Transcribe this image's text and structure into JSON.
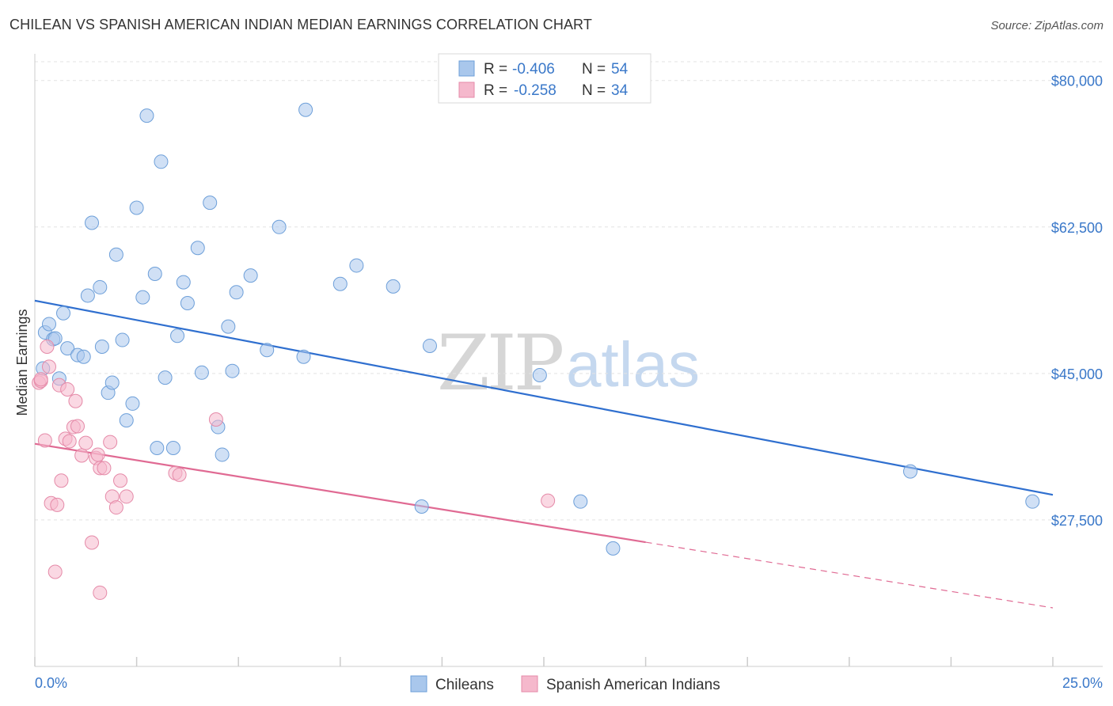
{
  "title": "CHILEAN VS SPANISH AMERICAN INDIAN MEDIAN EARNINGS CORRELATION CHART",
  "source": "Source: ZipAtlas.com",
  "watermark": {
    "zip": "ZIP",
    "atlas": "atlas"
  },
  "legend": {
    "rows": [
      {
        "r_label": "R =",
        "r_value": "-0.406",
        "n_label": "N =",
        "n_value": "54"
      },
      {
        "r_label": "R =",
        "r_value": "-0.258",
        "n_label": "N =",
        "n_value": "34"
      }
    ]
  },
  "colors": {
    "blue_fill": "#a9c7ec",
    "blue_stroke": "#6d9fd9",
    "blue_line": "#2f6fcf",
    "pink_fill": "#f5b8cc",
    "pink_stroke": "#e58aa8",
    "pink_line": "#e06a93",
    "axis_text": "#3a78c9",
    "grid": "#e3e3e3"
  },
  "chart_data": {
    "type": "scatter",
    "title": "CHILEAN VS SPANISH AMERICAN INDIAN MEDIAN EARNINGS CORRELATION CHART",
    "xlabel": "",
    "ylabel": "Median Earnings",
    "xlim": [
      0,
      25
    ],
    "ylim": [
      10000,
      83000
    ],
    "x_tick_labels": [
      "0.0%",
      "25.0%"
    ],
    "y_ticks": [
      27500,
      45000,
      62500,
      80000
    ],
    "y_tick_labels": [
      "$27,500",
      "$45,000",
      "$62,500",
      "$80,000"
    ],
    "grid": true,
    "series": [
      {
        "name": "Chileans",
        "color": "#a9c7ec",
        "trend": {
          "x": [
            0,
            25
          ],
          "y": [
            53700,
            30500
          ],
          "dashed_from": null
        },
        "points": [
          [
            0.2,
            45600
          ],
          [
            0.25,
            49900
          ],
          [
            0.35,
            50900
          ],
          [
            0.45,
            49100
          ],
          [
            0.5,
            49200
          ],
          [
            0.6,
            44400
          ],
          [
            0.7,
            52200
          ],
          [
            0.8,
            48000
          ],
          [
            1.05,
            47200
          ],
          [
            1.2,
            47000
          ],
          [
            1.3,
            54300
          ],
          [
            1.4,
            63000
          ],
          [
            1.6,
            55300
          ],
          [
            1.65,
            48200
          ],
          [
            1.8,
            42700
          ],
          [
            1.9,
            43900
          ],
          [
            2.0,
            59200
          ],
          [
            2.15,
            49000
          ],
          [
            2.25,
            39400
          ],
          [
            2.4,
            41400
          ],
          [
            2.5,
            64800
          ],
          [
            2.65,
            54100
          ],
          [
            2.75,
            75800
          ],
          [
            2.95,
            56900
          ],
          [
            3.0,
            36100
          ],
          [
            3.1,
            70300
          ],
          [
            3.2,
            44500
          ],
          [
            3.4,
            36100
          ],
          [
            3.5,
            49500
          ],
          [
            3.65,
            55900
          ],
          [
            3.75,
            53400
          ],
          [
            4.0,
            60000
          ],
          [
            4.1,
            45100
          ],
          [
            4.3,
            65400
          ],
          [
            4.5,
            38600
          ],
          [
            4.6,
            35300
          ],
          [
            4.75,
            50600
          ],
          [
            4.85,
            45300
          ],
          [
            4.95,
            54700
          ],
          [
            5.3,
            56700
          ],
          [
            5.7,
            47800
          ],
          [
            6.0,
            62500
          ],
          [
            6.6,
            47000
          ],
          [
            6.65,
            76500
          ],
          [
            7.5,
            55700
          ],
          [
            7.9,
            57900
          ],
          [
            8.8,
            55400
          ],
          [
            9.5,
            29100
          ],
          [
            9.7,
            48300
          ],
          [
            12.4,
            44800
          ],
          [
            13.4,
            29700
          ],
          [
            14.2,
            24100
          ],
          [
            21.5,
            33300
          ],
          [
            24.5,
            29700
          ]
        ]
      },
      {
        "name": "Spanish American Indians",
        "color": "#f5b8cc",
        "trend": {
          "x": [
            0,
            25
          ],
          "y": [
            36600,
            17000
          ],
          "dashed_from": 15
        },
        "points": [
          [
            0.1,
            43900
          ],
          [
            0.15,
            44100
          ],
          [
            0.25,
            37000
          ],
          [
            0.3,
            48200
          ],
          [
            0.35,
            45800
          ],
          [
            0.4,
            29500
          ],
          [
            0.55,
            29300
          ],
          [
            0.6,
            43600
          ],
          [
            0.65,
            32200
          ],
          [
            0.75,
            37200
          ],
          [
            0.8,
            43100
          ],
          [
            0.85,
            36900
          ],
          [
            0.95,
            38600
          ],
          [
            1.0,
            41700
          ],
          [
            1.05,
            38700
          ],
          [
            1.15,
            35200
          ],
          [
            1.25,
            36700
          ],
          [
            1.4,
            24800
          ],
          [
            1.5,
            34900
          ],
          [
            1.55,
            35300
          ],
          [
            1.6,
            33700
          ],
          [
            1.7,
            33700
          ],
          [
            1.85,
            36800
          ],
          [
            1.9,
            30300
          ],
          [
            2.0,
            29000
          ],
          [
            2.1,
            32200
          ],
          [
            2.25,
            30300
          ],
          [
            3.45,
            33100
          ],
          [
            3.55,
            32900
          ],
          [
            4.45,
            39500
          ],
          [
            0.5,
            21300
          ],
          [
            1.6,
            18800
          ],
          [
            12.6,
            29800
          ],
          [
            0.15,
            44300
          ]
        ]
      }
    ]
  },
  "bottom_legend": [
    {
      "label": "Chileans"
    },
    {
      "label": "Spanish American Indians"
    }
  ]
}
